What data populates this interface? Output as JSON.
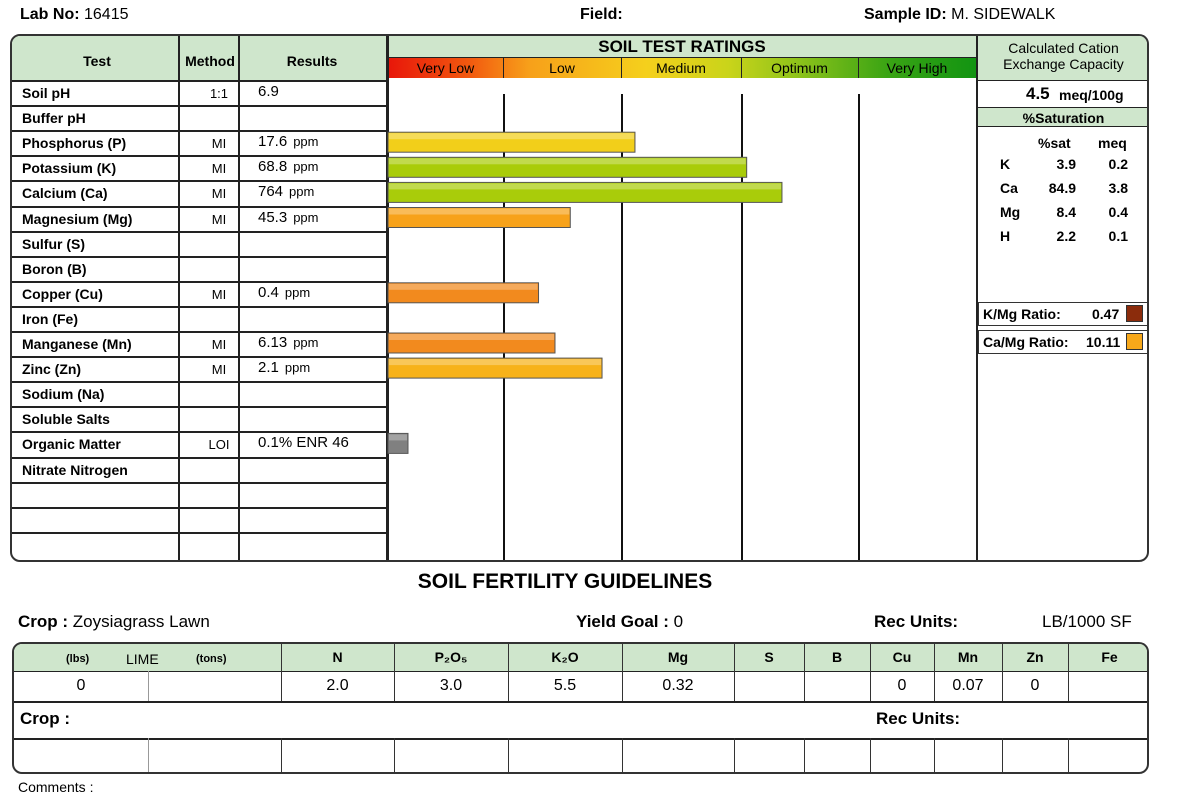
{
  "header": {
    "lab_no_label": "Lab No:",
    "lab_no": "16415",
    "field_label": "Field:",
    "sample_id_label": "Sample ID:",
    "sample_id": "M. SIDEWALK"
  },
  "table": {
    "col_test": "Test",
    "col_method": "Method",
    "col_results": "Results",
    "ratings_title": "SOIL TEST RATINGS",
    "rating_labels": [
      "Very Low",
      "Low",
      "Medium",
      "Optimum",
      "Very High"
    ],
    "rows": [
      {
        "test": "Soil pH",
        "method": "1:1",
        "value": "6.9",
        "unit": ""
      },
      {
        "test": "Buffer pH",
        "method": "",
        "value": "",
        "unit": ""
      },
      {
        "test": "Phosphorus (P)",
        "method": "MI",
        "value": "17.6",
        "unit": "ppm"
      },
      {
        "test": "Potassium (K)",
        "method": "MI",
        "value": "68.8",
        "unit": "ppm"
      },
      {
        "test": "Calcium (Ca)",
        "method": "MI",
        "value": "764",
        "unit": "ppm"
      },
      {
        "test": "Magnesium (Mg)",
        "method": "MI",
        "value": "45.3",
        "unit": "ppm"
      },
      {
        "test": "Sulfur (S)",
        "method": "",
        "value": "",
        "unit": ""
      },
      {
        "test": "Boron (B)",
        "method": "",
        "value": "",
        "unit": ""
      },
      {
        "test": "Copper (Cu)",
        "method": "MI",
        "value": "0.4",
        "unit": "ppm"
      },
      {
        "test": "Iron (Fe)",
        "method": "",
        "value": "",
        "unit": ""
      },
      {
        "test": "Manganese (Mn)",
        "method": "MI",
        "value": "6.13",
        "unit": "ppm"
      },
      {
        "test": "Zinc (Zn)",
        "method": "MI",
        "value": "2.1",
        "unit": "ppm"
      },
      {
        "test": "Sodium (Na)",
        "method": "",
        "value": "",
        "unit": ""
      },
      {
        "test": "Soluble Salts",
        "method": "",
        "value": "",
        "unit": ""
      },
      {
        "test": "Organic Matter",
        "method": "LOI",
        "value": "0.1%  ENR  46",
        "unit": ""
      },
      {
        "test": "Nitrate Nitrogen",
        "method": "",
        "value": "",
        "unit": ""
      }
    ],
    "bars": [
      {
        "row": 2,
        "level": 2.1,
        "color": "#f2cf1a"
      },
      {
        "row": 3,
        "level": 3.05,
        "color": "#a9cc0a"
      },
      {
        "row": 4,
        "level": 3.35,
        "color": "#a9cc0a"
      },
      {
        "row": 5,
        "level": 1.55,
        "color": "#f7a21a"
      },
      {
        "row": 8,
        "level": 1.28,
        "color": "#f28a1e"
      },
      {
        "row": 10,
        "level": 1.42,
        "color": "#f28a1e"
      },
      {
        "row": 11,
        "level": 1.82,
        "color": "#f7b21a"
      },
      {
        "row": 14,
        "level": 0.17,
        "color": "#808080"
      }
    ]
  },
  "cec": {
    "title_line1": "Calculated Cation",
    "title_line2": "Exchange Capacity",
    "value": "4.5",
    "unit": "meq/100g",
    "saturation_title": "%Saturation",
    "col_sat": "%sat",
    "col_meq": "meq",
    "rows": [
      {
        "el": "K",
        "sat": "3.9",
        "meq": "0.2"
      },
      {
        "el": "Ca",
        "sat": "84.9",
        "meq": "3.8"
      },
      {
        "el": "Mg",
        "sat": "8.4",
        "meq": "0.4"
      },
      {
        "el": "H",
        "sat": "2.2",
        "meq": "0.1"
      }
    ],
    "kmg_label": "K/Mg Ratio:",
    "kmg_value": "0.47",
    "kmg_color": "#8b2c0c",
    "camg_label": "Ca/Mg Ratio:",
    "camg_value": "10.11",
    "camg_color": "#f7a81a"
  },
  "guidelines": {
    "title": "SOIL FERTILITY GUIDELINES",
    "crop_label": "Crop :",
    "crop": "Zoysiagrass Lawn",
    "yield_label": "Yield Goal :",
    "yield": "0",
    "rec_units_label": "Rec Units:",
    "rec_units": "LB/1000 SF",
    "lime_lbs": "(lbs)",
    "lime_label": "LIME",
    "lime_tons": "(tons)",
    "nutrients": [
      "N",
      "P₂O₅",
      "K₂O",
      "Mg",
      "S",
      "B",
      "Cu",
      "Mn",
      "Zn",
      "Fe"
    ],
    "lime_value": "0",
    "values": [
      "2.0",
      "3.0",
      "5.5",
      "0.32",
      "",
      "",
      "0",
      "0.07",
      "0",
      ""
    ],
    "crop2_label": "Crop :",
    "rec_units2_label": "Rec Units:"
  },
  "comments_label": "Comments :"
}
